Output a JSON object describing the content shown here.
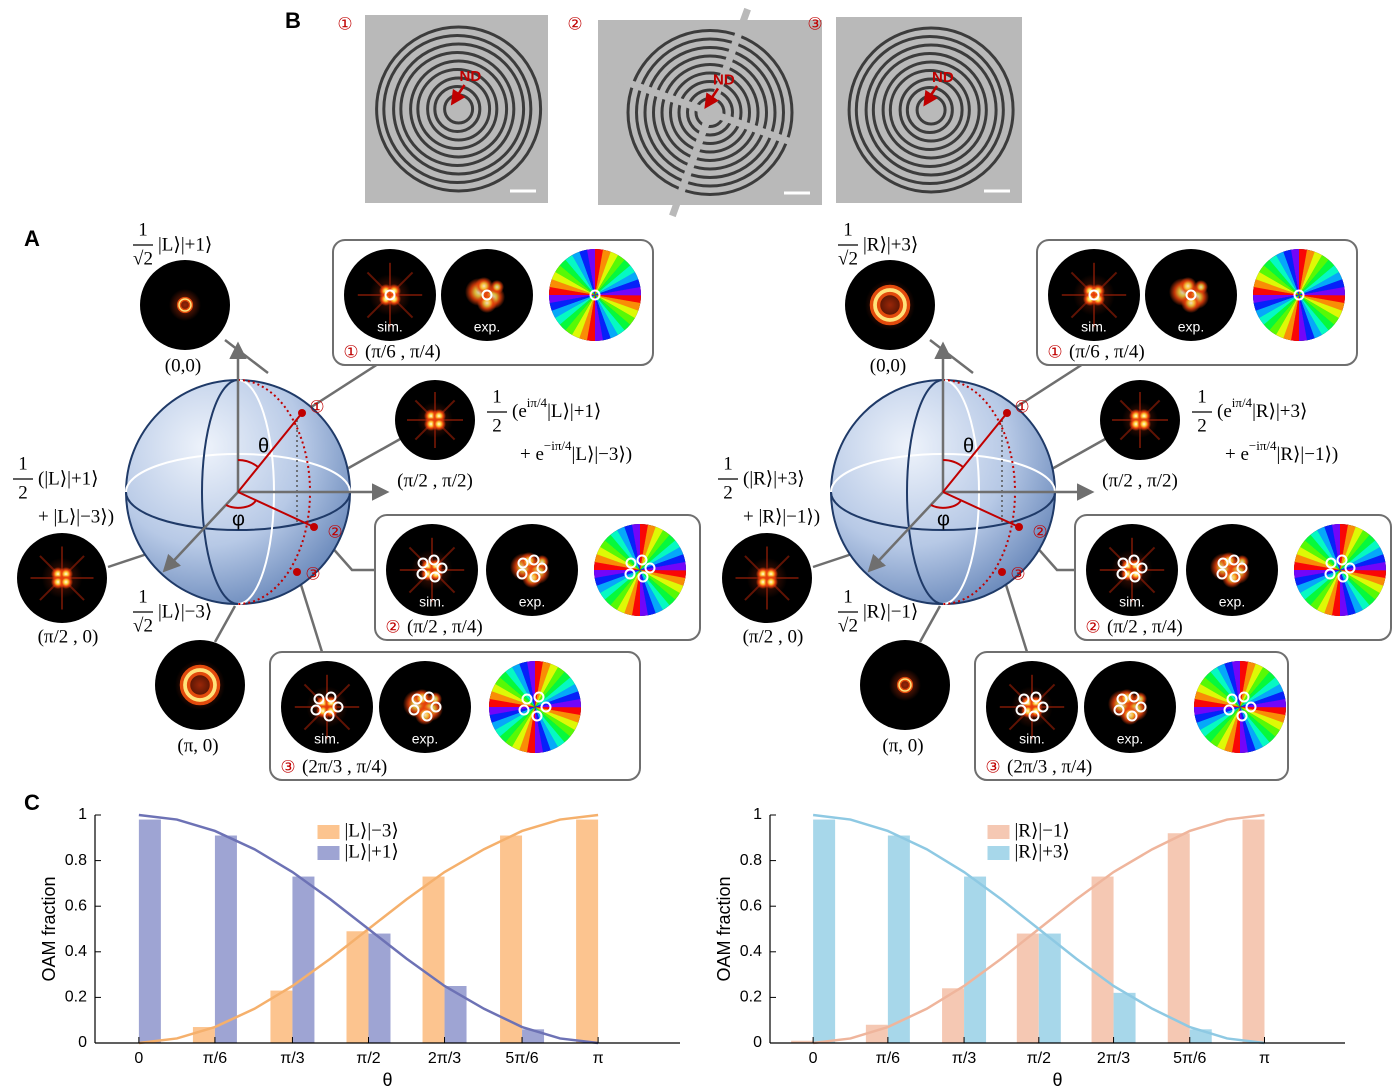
{
  "panel_labels": {
    "a": "A",
    "b": "B",
    "c": "C"
  },
  "sem_images": [
    {
      "number": "①",
      "marker": "ND"
    },
    {
      "number": "②",
      "marker": "ND"
    },
    {
      "number": "③",
      "marker": "ND"
    }
  ],
  "spheres": [
    {
      "theta": "θ",
      "phi": "φ",
      "points": [
        "①",
        "②",
        "③"
      ],
      "north": {
        "num": "1",
        "den": "√2",
        "state": "|L⟩|+1⟩",
        "coords": "(0,0)"
      },
      "south": {
        "num": "1",
        "den": "√2",
        "state": "|L⟩|−3⟩",
        "coords": "(π, 0)"
      },
      "front": {
        "num": "1",
        "den": "2",
        "line1": "(|L⟩|+1⟩",
        "line2": "+ |L⟩|−3⟩)",
        "coords": "(π/2 , 0)"
      },
      "side": {
        "num": "1",
        "den": "2",
        "line1_pre": "(e",
        "line1_exp": "iπ/4",
        "line1_post": "|L⟩|+1⟩",
        "line2_pre": "+ e",
        "line2_exp": "−iπ/4",
        "line2_post": "|L⟩|−3⟩)",
        "coords": "(π/2 , π/2)"
      },
      "boxes": [
        {
          "number": "①",
          "coords": "(π/6 , π/4)",
          "sim": "sim.",
          "exp": "exp."
        },
        {
          "number": "②",
          "coords": "(π/2 , π/4)",
          "sim": "sim.",
          "exp": "exp."
        },
        {
          "number": "③",
          "coords": "(2π/3 , π/4)",
          "sim": "sim.",
          "exp": "exp."
        }
      ]
    },
    {
      "theta": "θ",
      "phi": "φ",
      "points": [
        "①",
        "②",
        "③"
      ],
      "north": {
        "num": "1",
        "den": "√2",
        "state": "|R⟩|+3⟩",
        "coords": "(0,0)"
      },
      "south": {
        "num": "1",
        "den": "√2",
        "state": "|R⟩|−1⟩",
        "coords": "(π, 0)"
      },
      "front": {
        "num": "1",
        "den": "2",
        "line1": "(|R⟩|+3⟩",
        "line2": "+ |R⟩|−1⟩)",
        "coords": "(π/2 , 0)"
      },
      "side": {
        "num": "1",
        "den": "2",
        "line1_pre": "(e",
        "line1_exp": "iπ/4",
        "line1_post": "|R⟩|+3⟩",
        "line2_pre": "+ e",
        "line2_exp": "−iπ/4",
        "line2_post": "|R⟩|−1⟩)",
        "coords": "(π/2 , π/2)"
      },
      "boxes": [
        {
          "number": "①",
          "coords": "(π/6 , π/4)",
          "sim": "sim.",
          "exp": "exp."
        },
        {
          "number": "②",
          "coords": "(π/2 , π/4)",
          "sim": "sim.",
          "exp": "exp."
        },
        {
          "number": "③",
          "coords": "(2π/3 , π/4)",
          "sim": "sim.",
          "exp": "exp."
        }
      ]
    }
  ],
  "chart_data": [
    {
      "type": "bar",
      "xlabel": "θ",
      "ylabel": "OAM fraction",
      "legend": "top",
      "xlim": [
        -0.3,
        3.7
      ],
      "ylim": [
        0,
        1
      ],
      "xticks": [
        0,
        {
          "value": 0.52,
          "label": "π/6"
        },
        {
          "value": 1.05,
          "label": "π/3"
        },
        {
          "value": 1.57,
          "label": "π/2"
        },
        {
          "value": 2.09,
          "label": "2π/3"
        },
        {
          "value": 2.62,
          "label": "5π/6"
        },
        {
          "value": 3.14,
          "label": "π"
        }
      ],
      "yticks": [
        0,
        0.2,
        0.4,
        0.6,
        0.8,
        1
      ],
      "x": [
        0,
        0.52,
        1.05,
        1.57,
        2.09,
        2.62,
        3.14
      ],
      "series": [
        {
          "name": "|L⟩|−3⟩",
          "color": "#fcc48f",
          "values": [
            0,
            0.07,
            0.23,
            0.49,
            0.73,
            0.91,
            0.98
          ]
        },
        {
          "name": "|L⟩|+1⟩",
          "color": "#9ea4d3",
          "values": [
            0.98,
            0.91,
            0.73,
            0.48,
            0.25,
            0.06,
            0
          ]
        },
        {
          "type": "line",
          "color": "#f5b06c",
          "x": [
            0,
            0.26,
            0.52,
            0.79,
            1.05,
            1.31,
            1.57,
            1.83,
            2.09,
            2.36,
            2.62,
            2.88,
            3.14
          ],
          "values": [
            0,
            0.02,
            0.07,
            0.15,
            0.25,
            0.37,
            0.5,
            0.63,
            0.75,
            0.85,
            0.93,
            0.98,
            1
          ]
        },
        {
          "type": "line",
          "color": "#6d72b5",
          "x": [
            0,
            0.26,
            0.52,
            0.79,
            1.05,
            1.31,
            1.57,
            1.83,
            2.09,
            2.36,
            2.62,
            2.88,
            3.14
          ],
          "values": [
            1,
            0.98,
            0.93,
            0.85,
            0.75,
            0.63,
            0.5,
            0.37,
            0.25,
            0.15,
            0.07,
            0.02,
            0
          ]
        }
      ]
    },
    {
      "type": "bar",
      "xlabel": "θ",
      "ylabel": "OAM fraction",
      "legend": "top",
      "xlim": [
        -0.3,
        3.7
      ],
      "ylim": [
        0,
        1
      ],
      "xticks": [
        0,
        {
          "value": 0.52,
          "label": "π/6"
        },
        {
          "value": 1.05,
          "label": "π/3"
        },
        {
          "value": 1.57,
          "label": "π/2"
        },
        {
          "value": 2.09,
          "label": "2π/3"
        },
        {
          "value": 2.62,
          "label": "5π/6"
        },
        {
          "value": 3.14,
          "label": "π"
        }
      ],
      "yticks": [
        0,
        0.2,
        0.4,
        0.6,
        0.8,
        1
      ],
      "x": [
        0,
        0.52,
        1.05,
        1.57,
        2.09,
        2.62,
        3.14
      ],
      "series": [
        {
          "name": "|R⟩|−1⟩",
          "color": "#f5c8b3",
          "values": [
            0.01,
            0.08,
            0.24,
            0.48,
            0.73,
            0.92,
            0.98
          ]
        },
        {
          "name": "|R⟩|+3⟩",
          "color": "#a7d7ea",
          "values": [
            0.98,
            0.91,
            0.73,
            0.48,
            0.22,
            0.06,
            0
          ]
        },
        {
          "type": "line",
          "color": "#efb59c",
          "x": [
            0,
            0.26,
            0.52,
            0.79,
            1.05,
            1.31,
            1.57,
            1.83,
            2.09,
            2.36,
            2.62,
            2.88,
            3.14
          ],
          "values": [
            0,
            0.02,
            0.07,
            0.15,
            0.25,
            0.37,
            0.5,
            0.63,
            0.75,
            0.85,
            0.93,
            0.98,
            1
          ]
        },
        {
          "type": "line",
          "color": "#8ec9e3",
          "x": [
            0,
            0.26,
            0.52,
            0.79,
            1.05,
            1.31,
            1.57,
            1.83,
            2.09,
            2.36,
            2.62,
            2.88,
            3.14
          ],
          "values": [
            1,
            0.98,
            0.93,
            0.85,
            0.75,
            0.63,
            0.5,
            0.37,
            0.25,
            0.15,
            0.07,
            0.02,
            0
          ]
        }
      ]
    }
  ]
}
